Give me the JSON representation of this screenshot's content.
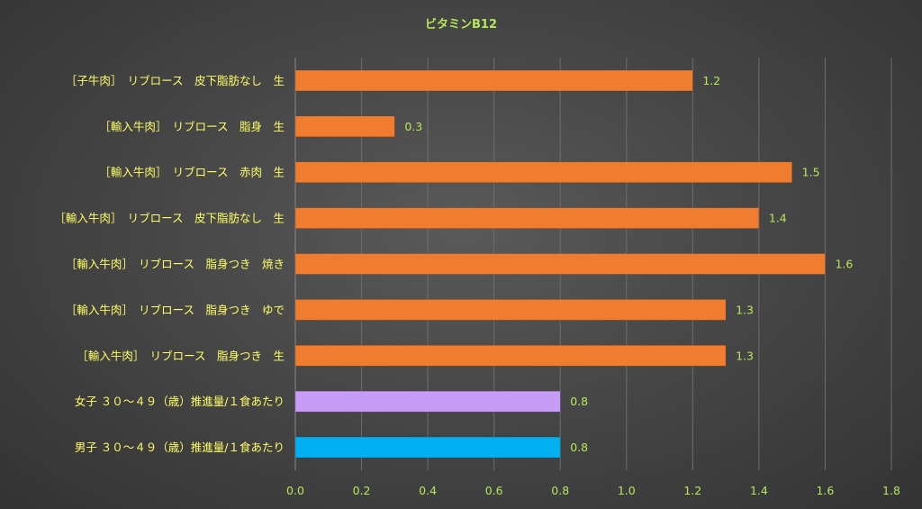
{
  "chart_data": {
    "type": "bar",
    "orientation": "horizontal",
    "title": "ビタミンB12",
    "xlabel": "",
    "ylabel": "",
    "xlim": [
      0,
      1.8
    ],
    "ticks": [
      "0.0",
      "0.2",
      "0.4",
      "0.6",
      "0.8",
      "1.0",
      "1.2",
      "1.4",
      "1.6",
      "1.8"
    ],
    "grid": "vertical",
    "legend": "none",
    "categories": [
      "［子牛肉］　リブロース　皮下脂肪なし　生",
      "［輸入牛肉］　リブロース　脂身　生",
      "［輸入牛肉］　リブロース　赤肉　生",
      "［輸入牛肉］　リブロース　皮下脂肪なし　生",
      "［輸入牛肉］　リブロース　脂身つき　焼き",
      "［輸入牛肉］　リブロース　脂身つき　ゆで",
      "［輸入牛肉］　リブロース　脂身つき　生",
      "女子 ３０〜４９（歳）推進量/１食あたり",
      "男子 ３０〜４９（歳）推進量/１食あたり"
    ],
    "values": [
      1.2,
      0.3,
      1.5,
      1.4,
      1.6,
      1.3,
      1.3,
      0.8,
      0.8
    ],
    "value_labels": [
      "1.2",
      "0.3",
      "1.5",
      "1.4",
      "1.6",
      "1.3",
      "1.3",
      "0.8",
      "0.8"
    ],
    "bar_colors": [
      "#f07c30",
      "#f07c30",
      "#f07c30",
      "#f07c30",
      "#f07c30",
      "#f07c30",
      "#f07c30",
      "#c79cf7",
      "#00b0f0"
    ]
  },
  "colors": {
    "title": "#b5e85a",
    "category_label": "#ffff66",
    "tick_label": "#b5e85a",
    "value_label": "#b5e85a",
    "gridline": "#6e6e6e",
    "axis": "#8a8a8a"
  }
}
